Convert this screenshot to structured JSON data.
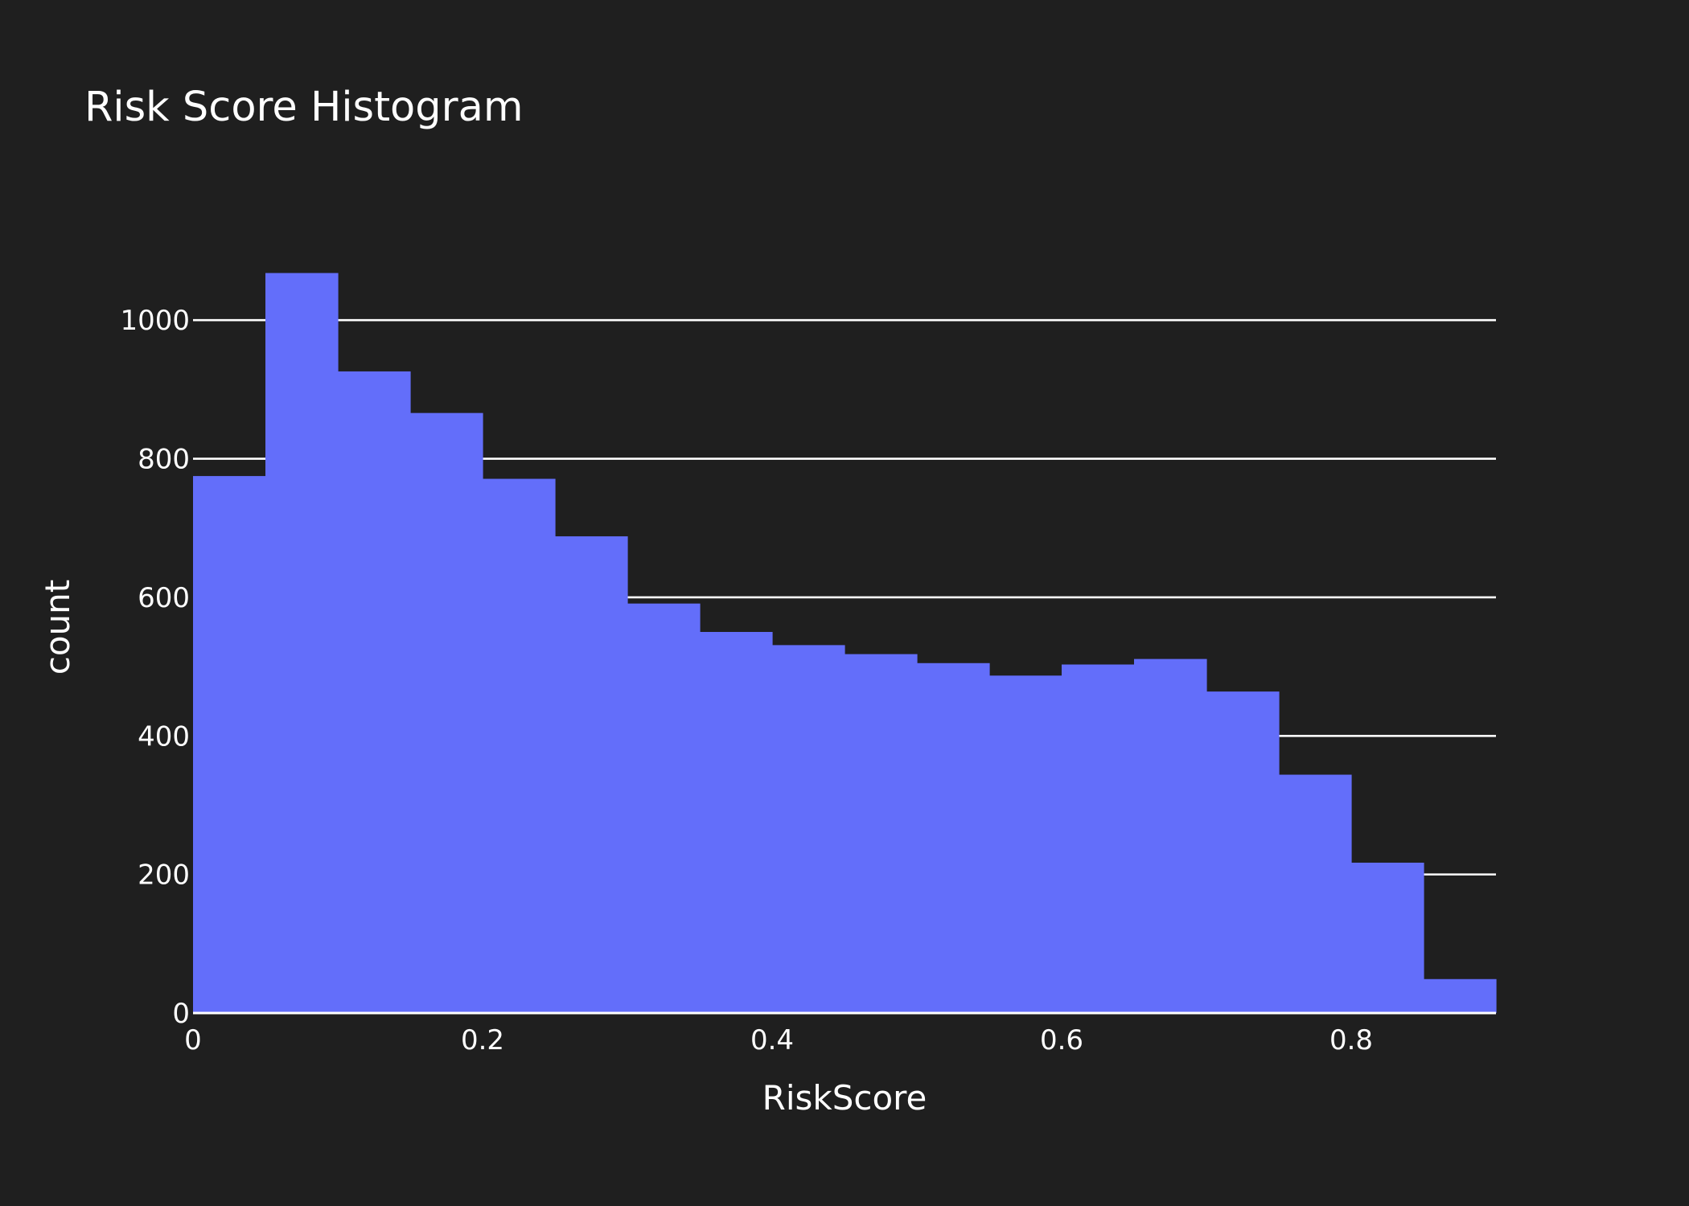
{
  "chart_data": {
    "type": "bar",
    "title": "Risk Score Histogram",
    "xlabel": "RiskScore",
    "ylabel": "count",
    "bin_width": 0.05,
    "bins": [
      {
        "start": 0.0,
        "end": 0.05,
        "count": 775
      },
      {
        "start": 0.05,
        "end": 0.1,
        "count": 1068
      },
      {
        "start": 0.1,
        "end": 0.15,
        "count": 926
      },
      {
        "start": 0.15,
        "end": 0.2,
        "count": 866
      },
      {
        "start": 0.2,
        "end": 0.25,
        "count": 771
      },
      {
        "start": 0.25,
        "end": 0.3,
        "count": 688
      },
      {
        "start": 0.3,
        "end": 0.35,
        "count": 591
      },
      {
        "start": 0.35,
        "end": 0.4,
        "count": 550
      },
      {
        "start": 0.4,
        "end": 0.45,
        "count": 531
      },
      {
        "start": 0.45,
        "end": 0.5,
        "count": 518
      },
      {
        "start": 0.5,
        "end": 0.55,
        "count": 505
      },
      {
        "start": 0.55,
        "end": 0.6,
        "count": 487
      },
      {
        "start": 0.6,
        "end": 0.65,
        "count": 503
      },
      {
        "start": 0.65,
        "end": 0.7,
        "count": 511
      },
      {
        "start": 0.7,
        "end": 0.75,
        "count": 464
      },
      {
        "start": 0.75,
        "end": 0.8,
        "count": 344
      },
      {
        "start": 0.8,
        "end": 0.85,
        "count": 217
      },
      {
        "start": 0.85,
        "end": 0.9,
        "count": 49
      }
    ],
    "xlim": [
      0,
      0.9
    ],
    "ylim": [
      0,
      1100
    ],
    "x_ticks": [
      0,
      0.2,
      0.4,
      0.6,
      0.8
    ],
    "x_tick_labels": [
      "0",
      "0.2",
      "0.4",
      "0.6",
      "0.8"
    ],
    "y_ticks": [
      0,
      200,
      400,
      600,
      800,
      1000
    ],
    "y_tick_labels": [
      "0",
      "200",
      "400",
      "600",
      "800",
      "1000"
    ],
    "grid": true,
    "colors": {
      "background": "#1f1f1f",
      "bar": "#636efa",
      "grid": "#ffffff",
      "text": "#ffffff"
    }
  }
}
